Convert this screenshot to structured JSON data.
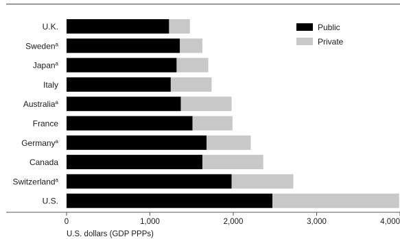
{
  "chart_data": {
    "type": "bar",
    "orientation": "horizontal",
    "stacked": true,
    "categories": [
      "U.K.",
      "Sweden",
      "Japan",
      "Italy",
      "Australia",
      "France",
      "Germany",
      "Canada",
      "Switzerland",
      "U.S."
    ],
    "category_superscripts": [
      "",
      "a",
      "a",
      "",
      "a",
      "",
      "a",
      "",
      "a",
      ""
    ],
    "series": [
      {
        "name": "Public",
        "color": "#000000",
        "values": [
          1230,
          1360,
          1320,
          1250,
          1370,
          1510,
          1680,
          1630,
          1980,
          2470
        ]
      },
      {
        "name": "Private",
        "color": "#c8c8c8",
        "values": [
          250,
          270,
          380,
          490,
          610,
          480,
          530,
          730,
          740,
          1520
        ]
      }
    ],
    "xlabel": "U.S. dollars (GDP PPPs)",
    "ylabel": "",
    "title": "",
    "xlim": [
      0,
      4000
    ],
    "xticks": [
      0,
      1000,
      2000,
      3000,
      4000
    ],
    "xtick_labels": [
      "0",
      "1,000",
      "2,000",
      "3,000",
      "4,000"
    ],
    "legend_position": "top-right",
    "grid": false
  }
}
